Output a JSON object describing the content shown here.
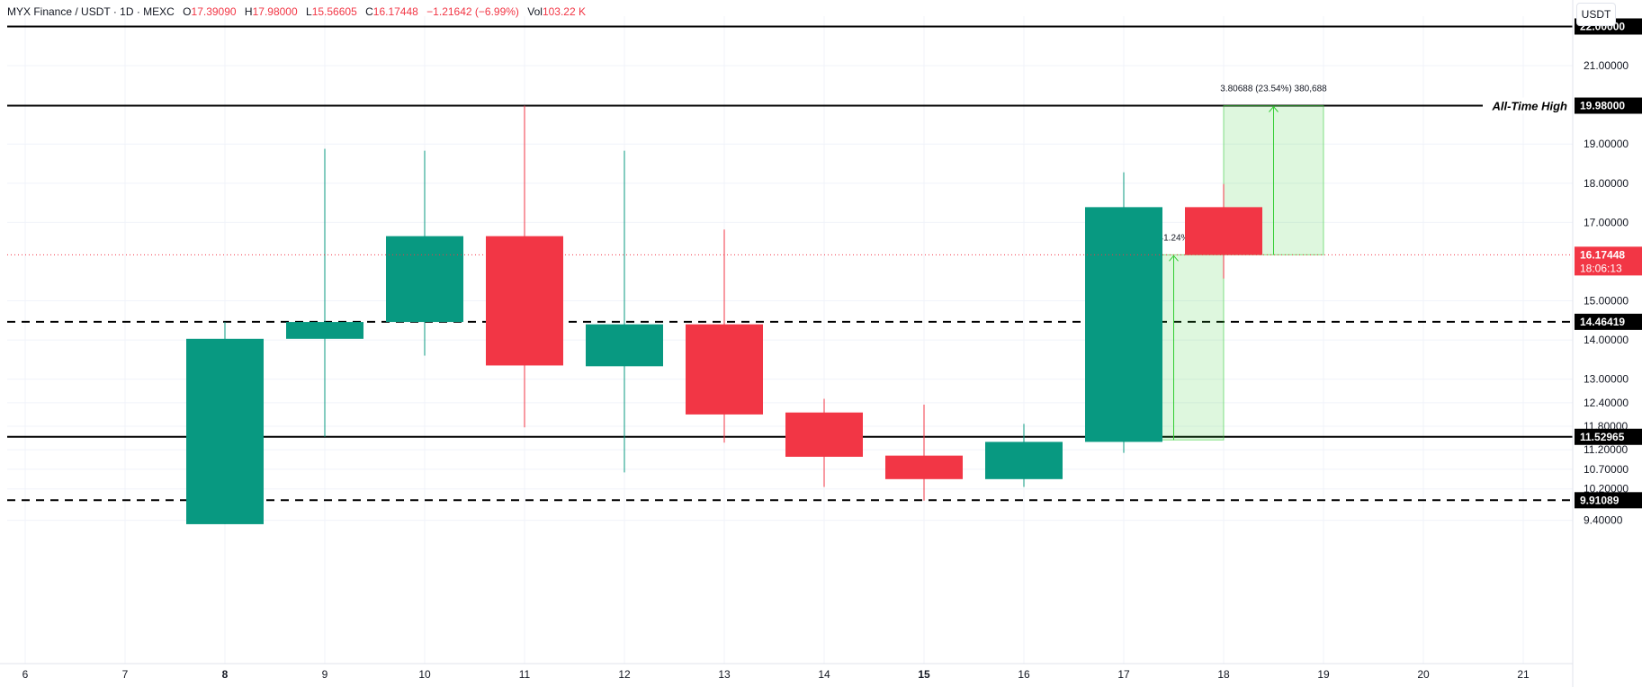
{
  "header": {
    "symbol": "MYX Finance / USDT · 1D · MEXC",
    "open_label": "O",
    "open": "17.39090",
    "high_label": "H",
    "high": "17.98000",
    "low_label": "L",
    "low": "15.56605",
    "close_label": "C",
    "close": "16.17448",
    "change": "−1.21642 (−6.99%)",
    "vol_label": "Vol",
    "vol": "103.22 K",
    "currency_button": "USDT"
  },
  "colors": {
    "up": "#089981",
    "down": "#f23645",
    "projection": "#32cd32",
    "level": "#000000"
  },
  "chart_data": {
    "type": "candlestick",
    "x_ticks": [
      "6",
      "7",
      "8",
      "9",
      "10",
      "11",
      "12",
      "13",
      "14",
      "15",
      "16",
      "17",
      "18",
      "19",
      "20",
      "21"
    ],
    "y_ticks": [
      "21.00000",
      "19.00000",
      "18.00000",
      "17.00000",
      "15.00000",
      "14.00000",
      "13.00000",
      "12.40000",
      "11.80000",
      "11.20000",
      "10.70000",
      "10.20000",
      "9.40000"
    ],
    "y_range": [
      9.0,
      22.5
    ],
    "grid": true,
    "candles": [
      {
        "day": 8,
        "open": 9.3,
        "high": 14.46,
        "low": 9.3,
        "close": 14.03
      },
      {
        "day": 9,
        "open": 14.03,
        "high": 18.88,
        "low": 11.53,
        "close": 14.46
      },
      {
        "day": 10,
        "open": 14.46,
        "high": 18.83,
        "low": 13.6,
        "close": 16.65
      },
      {
        "day": 11,
        "open": 16.65,
        "high": 19.98,
        "low": 11.77,
        "close": 13.35
      },
      {
        "day": 12,
        "open": 13.33,
        "high": 18.83,
        "low": 10.62,
        "close": 14.4
      },
      {
        "day": 13,
        "open": 14.4,
        "high": 16.82,
        "low": 11.38,
        "close": 12.1
      },
      {
        "day": 14,
        "open": 12.15,
        "high": 12.5,
        "low": 10.25,
        "close": 11.02
      },
      {
        "day": 15,
        "open": 11.05,
        "high": 12.35,
        "low": 9.9,
        "close": 10.45
      },
      {
        "day": 16,
        "open": 10.45,
        "high": 11.86,
        "low": 10.25,
        "close": 11.4
      },
      {
        "day": 17,
        "open": 11.4,
        "high": 18.28,
        "low": 11.12,
        "close": 17.39
      },
      {
        "day": 18,
        "open": 17.39,
        "high": 17.98,
        "low": 15.57,
        "close": 16.17
      }
    ],
    "levels": [
      {
        "value": 22.0,
        "label": "22.00000",
        "style": "solid"
      },
      {
        "value": 19.98,
        "label": "19.98000",
        "style": "solid",
        "annotation": "All-Time High"
      },
      {
        "value": 14.46419,
        "label": "14.46419",
        "style": "dashed"
      },
      {
        "value": 11.52965,
        "label": "11.52965",
        "style": "solid"
      },
      {
        "value": 9.91089,
        "label": "9.91089",
        "style": "dashed"
      }
    ],
    "last_price": {
      "value": 16.17448,
      "label": "16.17448",
      "countdown": "18:06:13"
    },
    "projections": [
      {
        "x_from": 17.0,
        "x_to": 18.0,
        "y_from": 11.45,
        "y_to": 16.17448,
        "arrow_x": 17.5,
        "label": "4.72323 (41.24%) 472,323"
      },
      {
        "x_from": 18.0,
        "x_to": 19.0,
        "y_from": 16.17448,
        "y_to": 19.98,
        "arrow_x": 18.5,
        "label": "3.80688 (23.54%) 380,688"
      }
    ]
  }
}
